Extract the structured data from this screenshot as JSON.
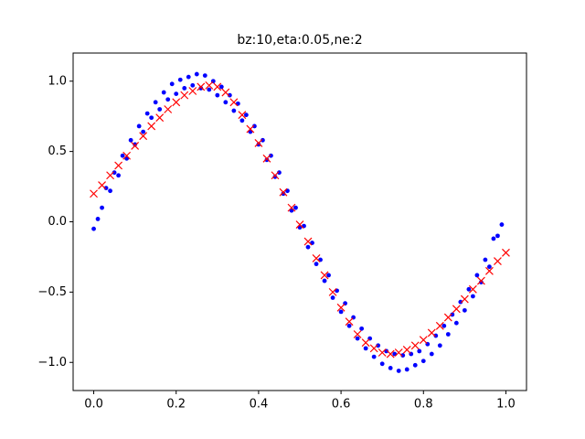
{
  "chart_data": {
    "type": "scatter",
    "title": "bz:10,eta:0.05,ne:2",
    "xlim": [
      -0.05,
      1.05
    ],
    "ylim": [
      -1.2,
      1.2
    ],
    "xticks": [
      {
        "value": 0,
        "label": "0.0"
      },
      {
        "value": 0.2,
        "label": "0.2"
      },
      {
        "value": 0.4,
        "label": "0.4"
      },
      {
        "value": 0.6,
        "label": "0.6"
      },
      {
        "value": 0.8,
        "label": "0.8"
      },
      {
        "value": 1,
        "label": "1.0"
      }
    ],
    "yticks": [
      {
        "value": -1,
        "label": "−1.0"
      },
      {
        "value": -0.5,
        "label": "−0.5"
      },
      {
        "value": 0,
        "label": "0.0"
      },
      {
        "value": 0.5,
        "label": "0.5"
      },
      {
        "value": 1,
        "label": "1.0"
      }
    ],
    "grid": false,
    "series": [
      {
        "color": "#0000ff",
        "marker": "o",
        "x": [
          0,
          0.01,
          0.02,
          0.03,
          0.04,
          0.05,
          0.06,
          0.07,
          0.08,
          0.09,
          0.1,
          0.11,
          0.12,
          0.13,
          0.14,
          0.15,
          0.16,
          0.17,
          0.18,
          0.19,
          0.2,
          0.21,
          0.22,
          0.23,
          0.24,
          0.25,
          0.26,
          0.27,
          0.28,
          0.29,
          0.3,
          0.31,
          0.32,
          0.33,
          0.34,
          0.35,
          0.36,
          0.37,
          0.38,
          0.39,
          0.4,
          0.41,
          0.42,
          0.43,
          0.44,
          0.45,
          0.46,
          0.47,
          0.48,
          0.49,
          0.5,
          0.51,
          0.52,
          0.53,
          0.54,
          0.55,
          0.56,
          0.57,
          0.58,
          0.59,
          0.6,
          0.61,
          0.62,
          0.63,
          0.64,
          0.65,
          0.66,
          0.67,
          0.68,
          0.69,
          0.7,
          0.71,
          0.72,
          0.73,
          0.74,
          0.75,
          0.76,
          0.77,
          0.78,
          0.79,
          0.8,
          0.81,
          0.82,
          0.83,
          0.84,
          0.85,
          0.86,
          0.87,
          0.88,
          0.89,
          0.9,
          0.91,
          0.92,
          0.93,
          0.94,
          0.95,
          0.96,
          0.97,
          0.98,
          0.99
        ],
        "values": [
          -0.05,
          0.02,
          0.1,
          0.24,
          0.22,
          0.35,
          0.33,
          0.47,
          0.45,
          0.58,
          0.55,
          0.68,
          0.64,
          0.77,
          0.74,
          0.85,
          0.8,
          0.92,
          0.87,
          0.98,
          0.91,
          1.01,
          0.95,
          1.03,
          0.97,
          1.05,
          0.95,
          1.04,
          0.94,
          1.0,
          0.9,
          0.96,
          0.85,
          0.9,
          0.79,
          0.84,
          0.72,
          0.76,
          0.64,
          0.68,
          0.55,
          0.58,
          0.44,
          0.47,
          0.32,
          0.35,
          0.2,
          0.22,
          0.08,
          0.1,
          -0.04,
          -0.03,
          -0.18,
          -0.15,
          -0.3,
          -0.27,
          -0.42,
          -0.38,
          -0.54,
          -0.49,
          -0.64,
          -0.58,
          -0.74,
          -0.68,
          -0.83,
          -0.76,
          -0.9,
          -0.83,
          -0.96,
          -0.88,
          -1.01,
          -0.92,
          -1.04,
          -0.94,
          -1.06,
          -0.95,
          -1.05,
          -0.94,
          -1.02,
          -0.92,
          -0.99,
          -0.87,
          -0.94,
          -0.81,
          -0.88,
          -0.74,
          -0.8,
          -0.66,
          -0.72,
          -0.57,
          -0.63,
          -0.48,
          -0.53,
          -0.38,
          -0.43,
          -0.27,
          -0.32,
          -0.12,
          -0.1,
          -0.02
        ]
      },
      {
        "color": "#ff0000",
        "marker": "x",
        "x": [
          0,
          0.02,
          0.04,
          0.06,
          0.08,
          0.1,
          0.12,
          0.14,
          0.16,
          0.18,
          0.2,
          0.22,
          0.24,
          0.26,
          0.28,
          0.3,
          0.32,
          0.34,
          0.36,
          0.38,
          0.4,
          0.42,
          0.44,
          0.46,
          0.48,
          0.5,
          0.52,
          0.54,
          0.56,
          0.58,
          0.6,
          0.62,
          0.64,
          0.66,
          0.68,
          0.7,
          0.72,
          0.74,
          0.76,
          0.78,
          0.8,
          0.82,
          0.84,
          0.86,
          0.88,
          0.9,
          0.92,
          0.94,
          0.96,
          0.98,
          1
        ],
        "values": [
          0.2,
          0.26,
          0.33,
          0.4,
          0.47,
          0.54,
          0.61,
          0.68,
          0.74,
          0.8,
          0.85,
          0.9,
          0.93,
          0.96,
          0.97,
          0.96,
          0.92,
          0.85,
          0.76,
          0.66,
          0.56,
          0.45,
          0.33,
          0.21,
          0.1,
          -0.02,
          -0.14,
          -0.26,
          -0.38,
          -0.5,
          -0.61,
          -0.71,
          -0.8,
          -0.86,
          -0.9,
          -0.93,
          -0.94,
          -0.93,
          -0.91,
          -0.88,
          -0.84,
          -0.79,
          -0.74,
          -0.68,
          -0.62,
          -0.55,
          -0.48,
          -0.42,
          -0.35,
          -0.28,
          -0.22
        ]
      }
    ]
  }
}
